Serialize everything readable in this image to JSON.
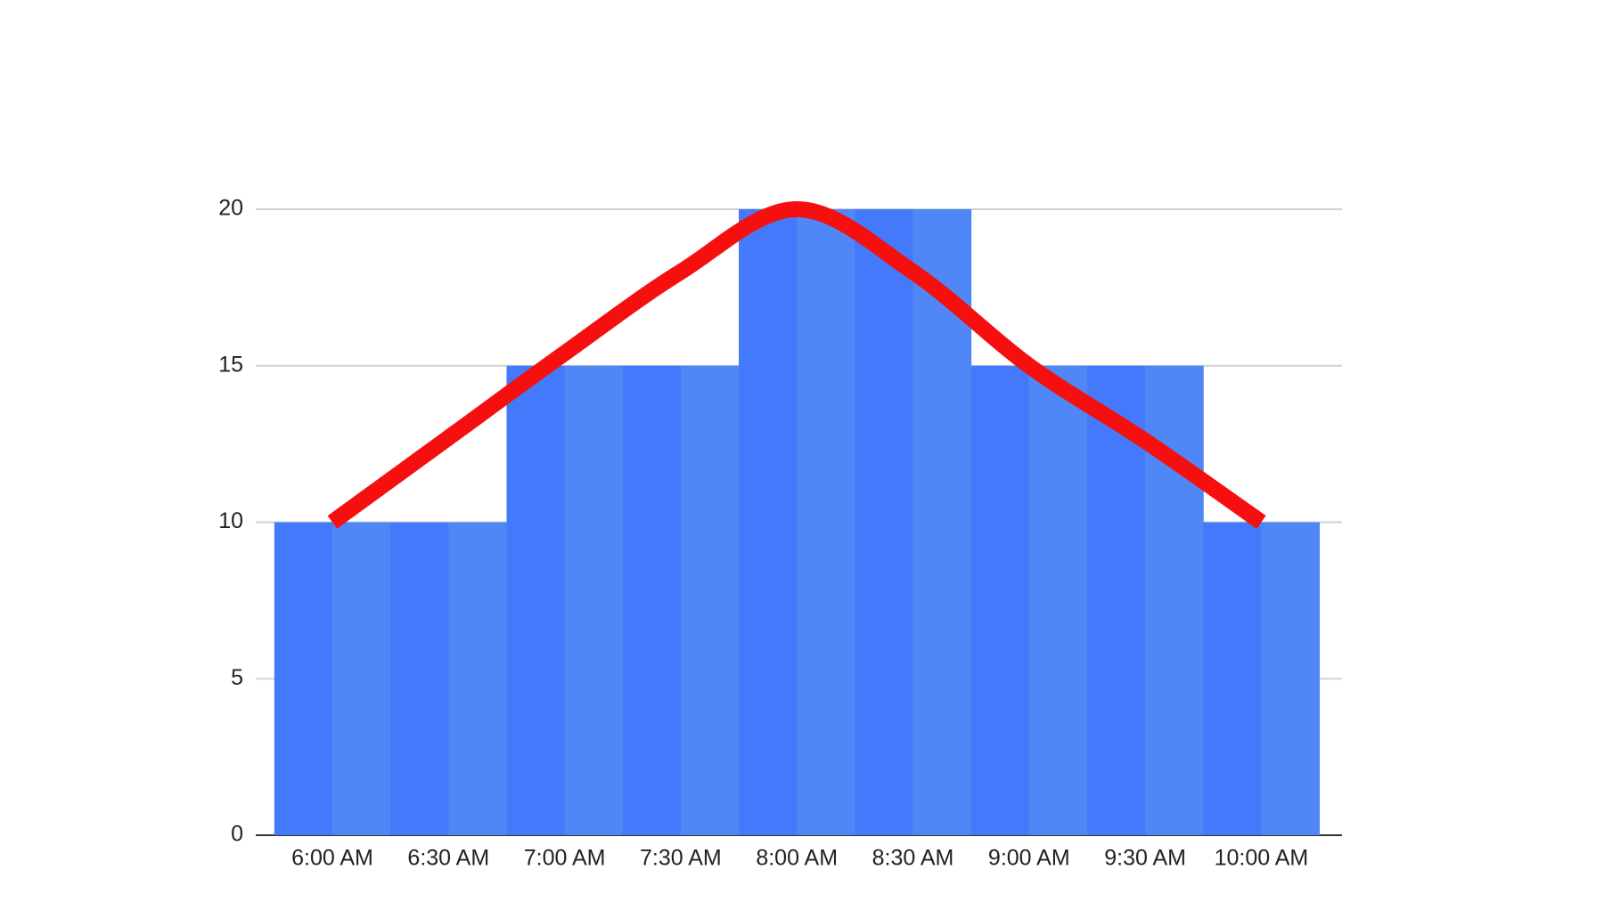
{
  "chart_data": {
    "type": "bar",
    "categories": [
      "6:00 AM",
      "6:30 AM",
      "7:00 AM",
      "7:30 AM",
      "8:00 AM",
      "8:30 AM",
      "9:00 AM",
      "9:30 AM",
      "10:00 AM"
    ],
    "series": [
      {
        "type": "bar",
        "colors": [
          "#4579fb",
          "#4f88f6"
        ],
        "values": [
          10,
          10,
          15,
          15,
          20,
          20,
          15,
          15,
          10
        ]
      },
      {
        "type": "line",
        "color": "#f50f0f",
        "values": [
          10,
          12.7,
          15.4,
          18,
          20,
          18,
          15,
          12.6,
          10
        ]
      }
    ],
    "ylim": [
      0,
      20
    ],
    "yticks": [
      0,
      5,
      10,
      15,
      20
    ],
    "grid": true
  }
}
